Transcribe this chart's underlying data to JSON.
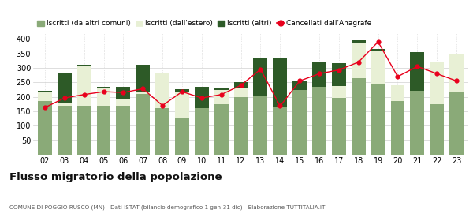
{
  "years": [
    "02",
    "03",
    "04",
    "05",
    "06",
    "07",
    "08",
    "09",
    "10",
    "11",
    "12",
    "13",
    "14",
    "15",
    "16",
    "17",
    "18",
    "19",
    "20",
    "21",
    "22",
    "23"
  ],
  "iscritti_altri_comuni": [
    185,
    170,
    170,
    170,
    170,
    210,
    160,
    125,
    160,
    175,
    200,
    205,
    163,
    225,
    235,
    197,
    265,
    245,
    185,
    220,
    175,
    215
  ],
  "iscritti_estero": [
    30,
    10,
    135,
    60,
    20,
    5,
    120,
    90,
    0,
    50,
    30,
    0,
    0,
    0,
    0,
    40,
    120,
    115,
    55,
    0,
    145,
    130
  ],
  "iscritti_altri": [
    5,
    100,
    5,
    5,
    45,
    95,
    0,
    10,
    75,
    5,
    20,
    130,
    170,
    30,
    85,
    80,
    10,
    5,
    0,
    135,
    0,
    5
  ],
  "cancellati": [
    163,
    196,
    208,
    218,
    215,
    228,
    170,
    218,
    196,
    208,
    240,
    295,
    168,
    255,
    280,
    293,
    320,
    390,
    270,
    305,
    280,
    255
  ],
  "color_altri_comuni": "#8aaa78",
  "color_estero": "#e8f0d5",
  "color_altri": "#2d5a27",
  "color_cancellati": "#e8001c",
  "legend_labels": [
    "Iscritti (da altri comuni)",
    "Iscritti (dall'estero)",
    "Iscritti (altri)",
    "Cancellati dall'Anagrafe"
  ],
  "title": "Flusso migratorio della popolazione",
  "subtitle": "COMUNE DI POGGIO RUSCO (MN) - Dati ISTAT (bilancio demografico 1 gen-31 dic) - Elaborazione TUTTITALIA.IT",
  "ylim": [
    0,
    420
  ],
  "yticks": [
    0,
    50,
    100,
    150,
    200,
    250,
    300,
    350,
    400
  ],
  "bg_color": "#ffffff",
  "grid_color": "#d0d0d0"
}
